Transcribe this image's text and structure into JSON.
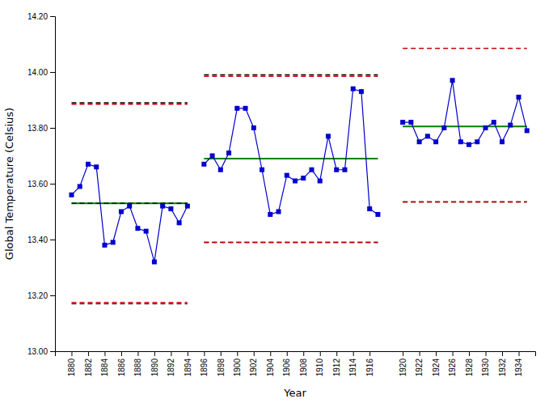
{
  "chart_data": {
    "type": "line",
    "xlabel": "Year",
    "ylabel": "Global Temperature (Celsius)",
    "x": [
      1880,
      1881,
      1882,
      1883,
      1884,
      1885,
      1886,
      1887,
      1888,
      1889,
      1890,
      1891,
      1892,
      1893,
      1894,
      1895,
      1896,
      1897,
      1898,
      1899,
      1900,
      1901,
      1902,
      1903,
      1904,
      1905,
      1906,
      1907,
      1908,
      1909,
      1910,
      1911,
      1912,
      1913,
      1914,
      1915,
      1916,
      1917,
      1918,
      1919,
      1920,
      1921,
      1922,
      1923,
      1924,
      1925,
      1926,
      1927,
      1928,
      1929,
      1930,
      1931,
      1932,
      1933,
      1934,
      1935
    ],
    "series": [
      {
        "color": "#0000CC",
        "marker": "square",
        "line_style": "solid",
        "values": [
          13.56,
          13.59,
          13.67,
          13.66,
          13.38,
          13.39,
          13.5,
          13.52,
          13.44,
          13.43,
          13.32,
          13.52,
          13.51,
          13.46,
          13.52,
          null,
          13.67,
          13.7,
          13.65,
          13.71,
          13.87,
          13.87,
          13.8,
          13.65,
          13.49,
          13.5,
          13.63,
          13.61,
          13.62,
          13.65,
          13.61,
          13.77,
          13.65,
          13.65,
          13.94,
          13.93,
          13.51,
          13.49,
          null,
          null,
          13.82,
          13.82,
          13.75,
          13.77,
          13.75,
          13.8,
          13.97,
          13.75,
          13.74,
          13.75,
          13.8,
          13.82,
          13.75,
          13.81,
          13.91,
          13.79
        ]
      }
    ],
    "reference_lines": [
      {
        "color": "#008000",
        "line_style": "solid",
        "lines": [
          {
            "y": 13.53,
            "x": [
              1880,
              1894
            ]
          },
          {
            "y": 13.69,
            "x": [
              1896,
              1917
            ]
          },
          {
            "y": 13.805,
            "x": [
              1920,
              1935
            ]
          }
        ]
      },
      {
        "color": "#000000",
        "line_style": "dashed",
        "lines": [
          {
            "y": 13.53,
            "x": [
              1880,
              1894
            ]
          },
          {
            "y": 13.89,
            "x": [
              1880,
              1894
            ]
          },
          {
            "y": 13.17,
            "x": [
              1880,
              1894
            ]
          },
          {
            "y": 13.99,
            "x": [
              1896,
              1917
            ]
          },
          {
            "y": 13.39,
            "x": [
              1896,
              1917
            ]
          },
          {
            "y": 13.535,
            "x": [
              1920,
              1935
            ]
          }
        ]
      },
      {
        "color": "#CC0000",
        "line_style": "dashed",
        "lines": [
          {
            "y": 13.175,
            "x": [
              1880,
              1894
            ]
          },
          {
            "y": 13.885,
            "x": [
              1880,
              1894
            ]
          },
          {
            "y": 13.39,
            "x": [
              1896,
              1917
            ]
          },
          {
            "y": 13.985,
            "x": [
              1896,
              1917
            ]
          },
          {
            "y": 13.535,
            "x": [
              1920,
              1935
            ]
          },
          {
            "y": 14.085,
            "x": [
              1920,
              1935
            ]
          }
        ]
      }
    ],
    "xlim": [
      1878,
      1936
    ],
    "xticks": [
      1880,
      1882,
      1884,
      1886,
      1888,
      1890,
      1892,
      1894,
      1896,
      1898,
      1900,
      1902,
      1904,
      1906,
      1908,
      1910,
      1912,
      1914,
      1916,
      1920,
      1922,
      1924,
      1926,
      1928,
      1930,
      1932,
      1934
    ],
    "ylim": [
      13.0,
      14.2
    ],
    "yticks": [
      {
        "value": 13.0,
        "label": "13.00"
      },
      {
        "value": 13.2,
        "label": "13.20"
      },
      {
        "value": 13.4,
        "label": "13.40"
      },
      {
        "value": 13.6,
        "label": "13.60"
      },
      {
        "value": 13.8,
        "label": "13.80"
      },
      {
        "value": 14.0,
        "label": "14.00"
      },
      {
        "value": 14.2,
        "label": "14.20"
      }
    ],
    "grid": false
  }
}
